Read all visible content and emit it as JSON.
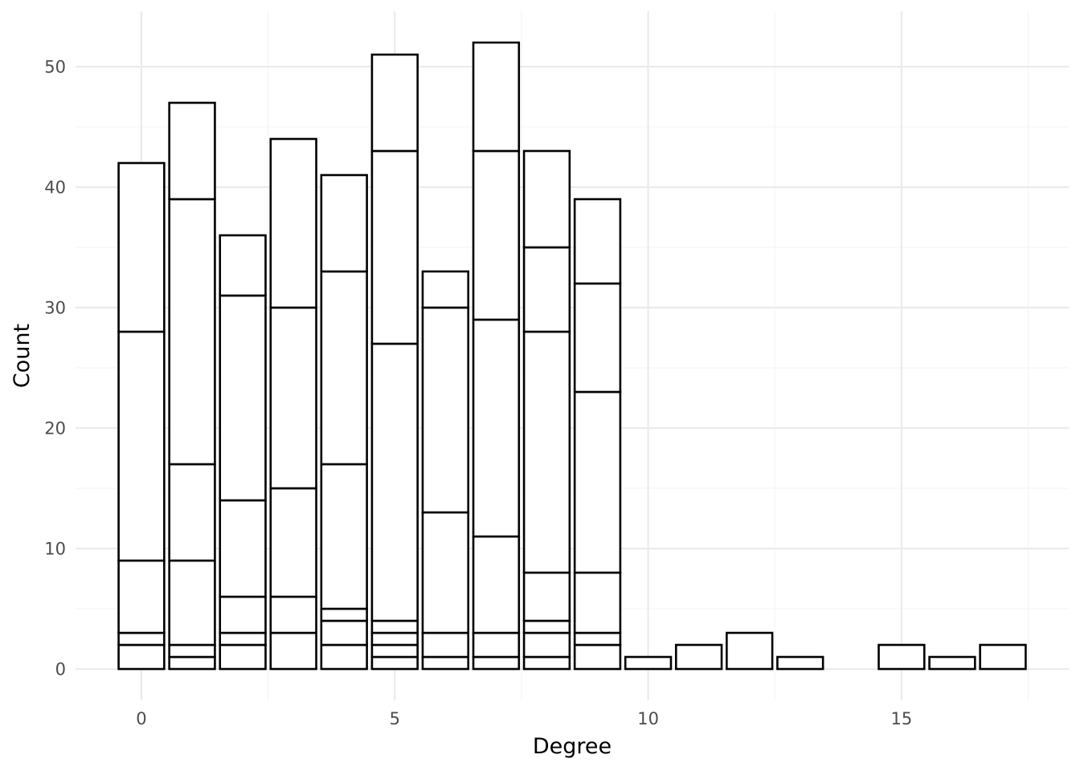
{
  "chart_data": {
    "type": "bar",
    "stacked": true,
    "title": "",
    "xlabel": "Degree",
    "ylabel": "Count",
    "xlim": [
      -1.3,
      18.3
    ],
    "ylim": [
      -2.6,
      54.6
    ],
    "x_ticks": [
      0,
      5,
      10,
      15
    ],
    "y_ticks": [
      0,
      10,
      20,
      30,
      40,
      50
    ],
    "grid": true,
    "legend": "none",
    "bar_fill": "#ffffff",
    "bar_outline": "#000000",
    "bars": [
      {
        "x": 0,
        "segments": [
          2,
          1,
          6,
          19,
          14
        ]
      },
      {
        "x": 1,
        "segments": [
          1,
          1,
          7,
          8,
          22,
          8
        ]
      },
      {
        "x": 2,
        "segments": [
          2,
          1,
          3,
          8,
          17,
          5
        ]
      },
      {
        "x": 3,
        "segments": [
          3,
          3,
          9,
          15,
          14
        ]
      },
      {
        "x": 4,
        "segments": [
          2,
          2,
          1,
          12,
          16,
          8
        ]
      },
      {
        "x": 5,
        "segments": [
          1,
          1,
          1,
          1,
          23,
          16,
          8
        ]
      },
      {
        "x": 6,
        "segments": [
          1,
          2,
          10,
          17,
          3
        ]
      },
      {
        "x": 7,
        "segments": [
          1,
          2,
          8,
          18,
          14,
          9
        ]
      },
      {
        "x": 8,
        "segments": [
          1,
          2,
          1,
          4,
          20,
          7,
          8
        ]
      },
      {
        "x": 9,
        "segments": [
          2,
          1,
          5,
          15,
          9,
          7
        ]
      },
      {
        "x": 10,
        "segments": [
          1
        ]
      },
      {
        "x": 11,
        "segments": [
          2
        ]
      },
      {
        "x": 12,
        "segments": [
          3
        ]
      },
      {
        "x": 13,
        "segments": [
          1
        ]
      },
      {
        "x": 15,
        "segments": [
          2
        ]
      },
      {
        "x": 16,
        "segments": [
          1
        ]
      },
      {
        "x": 17,
        "segments": [
          2
        ]
      }
    ],
    "totals": [
      42,
      47,
      36,
      44,
      41,
      51,
      33,
      52,
      43,
      39,
      1,
      2,
      3,
      1,
      2,
      1,
      2
    ]
  }
}
